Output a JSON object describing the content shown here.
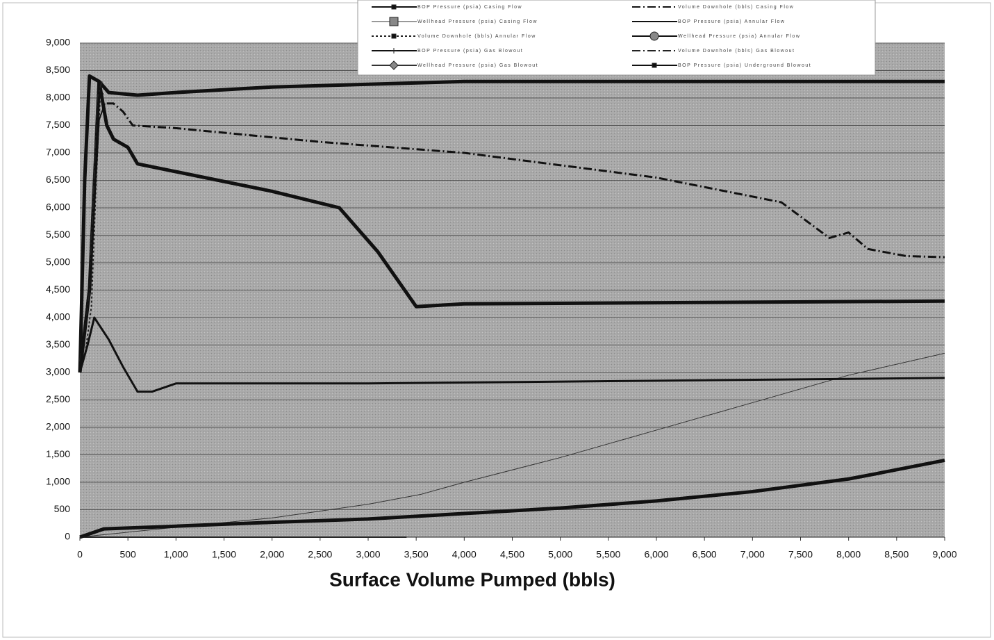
{
  "chart_data": {
    "type": "line",
    "xlabel": "Surface Volume Pumped (bbls)",
    "xlim": [
      0,
      9000
    ],
    "xticks": [
      0,
      500,
      {
        "value": 1000,
        "label": "1,000"
      },
      {
        "value": 1500,
        "label": "1,500"
      },
      {
        "value": 2000,
        "label": "2,000"
      },
      {
        "value": 2500,
        "label": "2,500"
      },
      {
        "value": 3000,
        "label": "3,000"
      },
      {
        "value": 3500,
        "label": "3,500"
      },
      {
        "value": 4000,
        "label": "4,000"
      },
      {
        "value": 4500,
        "label": "4,500"
      },
      {
        "value": 5000,
        "label": "5,000"
      },
      {
        "value": 5500,
        "label": "5,500"
      },
      {
        "value": 6000,
        "label": "6,000"
      },
      {
        "value": 6500,
        "label": "6,500"
      },
      {
        "value": 7000,
        "label": "7,000"
      },
      {
        "value": 7500,
        "label": "7,500"
      },
      {
        "value": 8000,
        "label": "8,000"
      },
      {
        "value": 8500,
        "label": "8,500"
      },
      {
        "value": 9000,
        "label": "9,000"
      }
    ],
    "ylim": [
      0,
      9000
    ],
    "yticks": [
      0,
      500,
      {
        "value": 1000,
        "label": "1,000"
      },
      {
        "value": 1500,
        "label": "1,500"
      },
      {
        "value": 2000,
        "label": "2,000"
      },
      {
        "value": 2500,
        "label": "2,500"
      },
      {
        "value": 3000,
        "label": "3,000"
      },
      {
        "value": 3500,
        "label": "3,500"
      },
      {
        "value": 4000,
        "label": "4,000"
      },
      {
        "value": 4500,
        "label": "4,500"
      },
      {
        "value": 5000,
        "label": "5,000"
      },
      {
        "value": 5500,
        "label": "5,500"
      },
      {
        "value": 6000,
        "label": "6,000"
      },
      {
        "value": 6500,
        "label": "6,500"
      },
      {
        "value": 7000,
        "label": "7,000"
      },
      {
        "value": 7500,
        "label": "7,500"
      },
      {
        "value": 8000,
        "label": "8,000"
      },
      {
        "value": 8500,
        "label": "8,500"
      },
      {
        "value": 9000,
        "label": "9,000"
      }
    ],
    "grid": true,
    "legend": "top",
    "series": [
      {
        "name": "BOP Pressure (psia) Casing Flow",
        "color": "#111",
        "width": 5,
        "dash": "solid",
        "marker": "square-small",
        "x": [
          0,
          50,
          100,
          200,
          300,
          600,
          1000,
          2000,
          4000,
          6000,
          9000
        ],
        "values": [
          3000,
          6500,
          8400,
          8300,
          8100,
          8050,
          8100,
          8200,
          8300,
          8300,
          8300
        ]
      },
      {
        "name": "Wellhead Pressure (psia) Casing Flow",
        "color": "#333",
        "width": 1,
        "dash": "solid",
        "marker": "square",
        "x": [
          0,
          1000,
          2000,
          3000,
          3550,
          4000,
          5000,
          6000,
          7000,
          8000,
          9000
        ],
        "values": [
          0,
          180,
          350,
          600,
          780,
          1000,
          1450,
          1950,
          2450,
          2950,
          3350
        ]
      },
      {
        "name": "Volume Downhole (bbls) Annular Flow",
        "color": "#222",
        "width": 2,
        "dash": "dot",
        "marker": "square-small",
        "x": [
          0,
          60,
          120,
          170,
          210,
          250
        ],
        "values": [
          3000,
          3400,
          4200,
          6500,
          8000,
          8100
        ]
      },
      {
        "name": "BOP Pressure (psia) Gas Blowout",
        "color": "#111",
        "width": 3,
        "dash": "solid",
        "marker": "plus",
        "x": [
          0,
          80,
          150,
          300,
          450,
          600,
          750,
          1000,
          3000,
          6000,
          9000
        ],
        "values": [
          3000,
          3500,
          4000,
          3600,
          3100,
          2650,
          2650,
          2800,
          2800,
          2850,
          2900
        ]
      },
      {
        "name": "Wellhead Pressure (psia) Gas Blowout",
        "color": "#333",
        "width": 2,
        "dash": "solid",
        "marker": "diamond",
        "x": [
          0,
          1000,
          2000,
          3400
        ],
        "values": [
          0,
          0,
          0,
          0
        ]
      },
      {
        "name": "Volume Downhole (bbls) Casing Flow",
        "color": "#111",
        "width": 3,
        "dash": "dashdot",
        "marker": "none",
        "x": [
          280,
          350,
          450,
          550,
          1000,
          2500,
          4000,
          6000,
          7300,
          7800,
          8000,
          8200,
          8600,
          9000
        ],
        "values": [
          7900,
          7900,
          7750,
          7500,
          7450,
          7200,
          7000,
          6550,
          6100,
          5450,
          5550,
          5250,
          5120,
          5100
        ]
      },
      {
        "name": "BOP Pressure (psia) Annular Flow",
        "color": "#111",
        "width": 5,
        "dash": "solid",
        "marker": "none",
        "x": [
          0,
          100,
          200,
          280,
          350,
          500,
          600,
          2000,
          2700,
          3100,
          3500,
          4000,
          9000
        ],
        "values": [
          3000,
          4500,
          8300,
          7500,
          7250,
          7100,
          6800,
          6300,
          6000,
          5200,
          4200,
          4250,
          4300
        ]
      },
      {
        "name": "Wellhead Pressure (psia) Annular Flow",
        "color": "#111",
        "width": 5,
        "dash": "solid",
        "marker": "circle",
        "x": [
          0,
          250,
          1000,
          2000,
          3000,
          4000,
          5000,
          6000,
          7000,
          8000,
          8270,
          9000
        ],
        "values": [
          0,
          150,
          200,
          270,
          330,
          430,
          530,
          660,
          830,
          1060,
          1150,
          1400
        ]
      },
      {
        "name": "Volume Downhole (bbls) Gas Blowout",
        "color": "#222",
        "width": 2,
        "dash": "dashdot",
        "marker": "none",
        "x": [
          0,
          100,
          180,
          230
        ],
        "values": [
          3200,
          4500,
          8000,
          8300
        ]
      },
      {
        "name": "BOP Pressure (psia) Underground Blowout",
        "color": "#111",
        "width": 2,
        "dash": "solid",
        "marker": "square-small",
        "x": [
          0,
          120,
          200,
          260
        ],
        "values": [
          3100,
          5000,
          7600,
          7900
        ]
      }
    ]
  }
}
